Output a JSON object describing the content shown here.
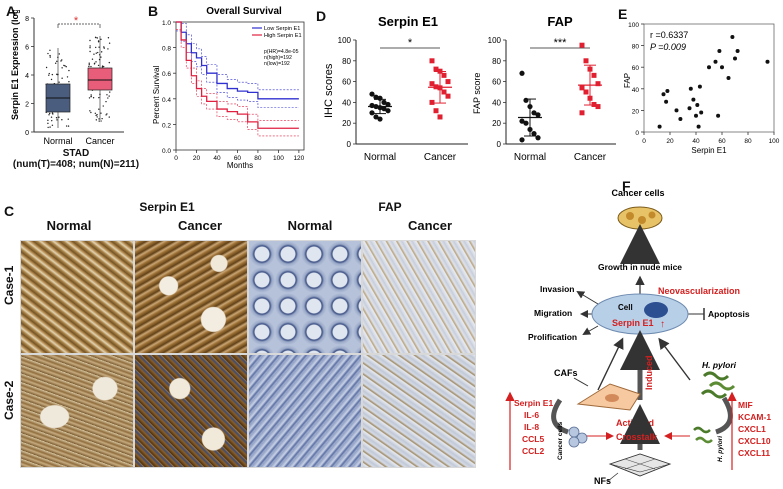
{
  "panels": {
    "A": "A",
    "B": "B",
    "C": "C",
    "D": "D",
    "E": "E",
    "F": "F"
  },
  "panel_a": {
    "ylabel": "Serpin E1 Expression (log2)",
    "categories": [
      "Normal",
      "Cancer"
    ],
    "star": "*",
    "ticks": [
      "0",
      "2",
      "4",
      "6",
      "8"
    ],
    "caption_title": "STAD",
    "caption_counts": "(num(T)=408; num(N)=211)",
    "colors": {
      "normal": "#4a5d7e",
      "cancer": "#e85d7a",
      "star": "#e03030"
    }
  },
  "panel_b": {
    "title": "Overall Survival",
    "ylabel": "Percent Survival",
    "xlabel": "Months",
    "legend": [
      "Low Serpin E1",
      "High Serpin E1"
    ],
    "stats": [
      "p(HR)=4.8e-05",
      "n(high)=192",
      "n(low)=192"
    ],
    "xticks": [
      "0",
      "20",
      "40",
      "60",
      "80",
      "100",
      "120"
    ],
    "yticks": [
      "0.0",
      "0.2",
      "0.4",
      "0.6",
      "0.8",
      "1.0"
    ],
    "colors": {
      "low": "#3030d0",
      "high": "#e02040"
    }
  },
  "panel_d1": {
    "title": "Serpin E1",
    "ylabel": "IHC scores",
    "categories": [
      "Normal",
      "Cancer"
    ],
    "sig": "*",
    "yticks": [
      "0",
      "20",
      "40",
      "60",
      "80",
      "100"
    ]
  },
  "panel_d2": {
    "title": "FAP",
    "ylabel": "FAP score",
    "categories": [
      "Normal",
      "Cancer"
    ],
    "sig": "***",
    "yticks": [
      "0",
      "20",
      "40",
      "60",
      "80",
      "100"
    ]
  },
  "panel_e": {
    "stat_r": "r =0.6337",
    "stat_p": "P =0.009",
    "xlabel": "Serpin E1",
    "ylabel": "FAP",
    "xticks": [
      "0",
      "20",
      "40",
      "60",
      "80",
      "100"
    ],
    "yticks": [
      "0",
      "20",
      "40",
      "60",
      "80",
      "100"
    ]
  },
  "panel_c": {
    "group_serpin": "Serpin E1",
    "group_fap": "FAP",
    "cols": [
      "Normal",
      "Cancer",
      "Normal",
      "Cancer"
    ],
    "rows": [
      "Case-1",
      "Case-2"
    ]
  },
  "panel_f": {
    "cancer_cells": "Cancer cells",
    "growth": "Growth in nude mice",
    "neovasc": "Neovascularization",
    "invasion": "Invasion",
    "migration": "Migration",
    "prolification": "Prolification",
    "apoptosis": "Apoptosis",
    "cell": "Cell",
    "serpin": "Serpin E1",
    "up": "↑",
    "cafs": "CAFs",
    "induced": "Induced",
    "hpylori": "H. pylori",
    "activited": "Activited",
    "crosstalk": "Crosstalk",
    "nfs": "NFs",
    "cancer_cells_small": "Cancer cells",
    "hpylori_small": "H. pylori",
    "left_list": [
      "Serpin E1",
      "IL-6",
      "IL-8",
      "CCL5",
      "CCL2"
    ],
    "right_list": [
      "MIF",
      "KCAM-1",
      "CXCL1",
      "CXCL10",
      "CXCL11"
    ],
    "red": "#d42020"
  },
  "chart_data": [
    {
      "type": "scatter",
      "title": "Serpin E1",
      "ylabel": "IHC scores",
      "categories": [
        "Normal",
        "Cancer"
      ],
      "series": [
        {
          "name": "Normal",
          "values": [
            48,
            45,
            44,
            40,
            38,
            37,
            36,
            35,
            34,
            32,
            30,
            26,
            24
          ]
        },
        {
          "name": "Cancer",
          "values": [
            80,
            72,
            70,
            66,
            60,
            58,
            55,
            54,
            50,
            46,
            40,
            32,
            26
          ]
        }
      ],
      "ylim": [
        0,
        100
      ]
    },
    {
      "type": "scatter",
      "title": "FAP",
      "ylabel": "FAP score",
      "categories": [
        "Normal",
        "Cancer"
      ],
      "series": [
        {
          "name": "Normal",
          "values": [
            68,
            42,
            36,
            30,
            28,
            22,
            20,
            14,
            10,
            6,
            4
          ]
        },
        {
          "name": "Cancer",
          "values": [
            95,
            80,
            72,
            66,
            58,
            54,
            50,
            44,
            38,
            36,
            30
          ]
        }
      ],
      "ylim": [
        0,
        100
      ]
    },
    {
      "type": "scatter",
      "xlabel": "Serpin E1",
      "ylabel": "FAP",
      "x": [
        12,
        15,
        17,
        18,
        25,
        28,
        35,
        36,
        38,
        40,
        41,
        42,
        43,
        44,
        50,
        55,
        57,
        58,
        60,
        65,
        68,
        70,
        72,
        95
      ],
      "y": [
        5,
        35,
        28,
        38,
        20,
        12,
        22,
        40,
        30,
        15,
        25,
        5,
        42,
        18,
        60,
        65,
        15,
        75,
        60,
        50,
        88,
        68,
        75,
        65
      ],
      "xlim": [
        0,
        100
      ],
      "ylim": [
        0,
        100
      ]
    },
    {
      "type": "line",
      "title": "Overall Survival",
      "xlabel": "Months",
      "ylabel": "Percent Survival",
      "series": [
        {
          "name": "Low Serpin E1",
          "x": [
            0,
            5,
            10,
            15,
            20,
            25,
            30,
            40,
            50,
            60,
            70,
            80,
            100,
            120
          ],
          "y": [
            1.0,
            0.92,
            0.83,
            0.76,
            0.72,
            0.66,
            0.6,
            0.52,
            0.48,
            0.46,
            0.45,
            0.4,
            0.4,
            0.4
          ]
        },
        {
          "name": "High Serpin E1",
          "x": [
            0,
            5,
            10,
            15,
            20,
            25,
            30,
            40,
            50,
            60,
            70,
            80,
            100,
            120
          ],
          "y": [
            1.0,
            0.86,
            0.7,
            0.58,
            0.48,
            0.42,
            0.38,
            0.32,
            0.3,
            0.28,
            0.22,
            0.17,
            0.17,
            0.17
          ]
        }
      ],
      "xlim": [
        0,
        125
      ],
      "ylim": [
        0,
        1.0
      ]
    },
    {
      "type": "bar",
      "title": "",
      "ylabel": "Serpin E1 Expression (log2)",
      "categories": [
        "Normal",
        "Cancer"
      ],
      "values": [
        3.3,
        4.6
      ],
      "ylim": [
        0,
        8
      ]
    }
  ]
}
